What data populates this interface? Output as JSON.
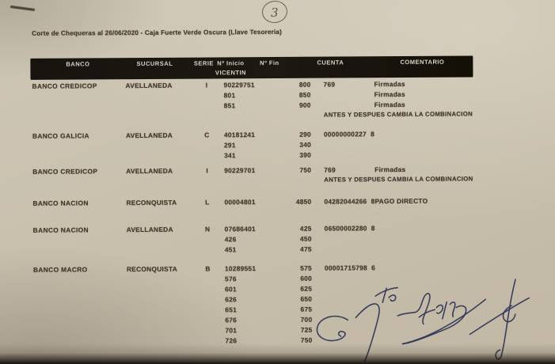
{
  "annotations": {
    "page_number": "3"
  },
  "title": "Corte de Chequeras al 26/06/2020 - Caja Fuerte Verde Oscura (Llave Tesoreria)",
  "table": {
    "headers": [
      "BANCO",
      "SUCURSAL",
      "SERIE",
      "Nº Inicio",
      "Nº Fin",
      "CUENTA",
      "COMENTARIO"
    ],
    "subheader": "VICENTIN",
    "groups": [
      {
        "banco": "BANCO CREDICOP",
        "sucursal": "AVELLANEDA",
        "serie": "I",
        "rows": [
          {
            "inicio": "90229751",
            "fin": "800",
            "cuenta": "769",
            "comentario": "Firmadas"
          },
          {
            "inicio": "801",
            "fin": "850",
            "cuenta": "",
            "comentario": "Firmadas"
          },
          {
            "inicio": "851",
            "fin": "900",
            "cuenta": "",
            "comentario": "Firmadas"
          }
        ],
        "nota": "ANTES Y DESPUES CAMBIA LA COMBINACION"
      },
      {
        "banco": "BANCO GALICIA",
        "sucursal": "AVELLANEDA",
        "serie": "C",
        "rows": [
          {
            "inicio": "40181241",
            "fin": "290",
            "cuenta": "00000000227  8",
            "comentario": ""
          },
          {
            "inicio": "291",
            "fin": "340",
            "cuenta": "",
            "comentario": ""
          },
          {
            "inicio": "341",
            "fin": "390",
            "cuenta": "",
            "comentario": ""
          }
        ],
        "nota": ""
      },
      {
        "banco": "BANCO CREDICOP",
        "sucursal": "AVELLANEDA",
        "serie": "I",
        "rows": [
          {
            "inicio": "90229701",
            "fin": "750",
            "cuenta": "769",
            "comentario": "Firmadas"
          }
        ],
        "nota": "ANTES Y DESPUES CAMBIA LA COMBINACION"
      },
      {
        "banco": "BANCO NACION",
        "sucursal": "RECONQUISTA",
        "serie": "L",
        "rows": [
          {
            "inicio": "00004801",
            "fin": "4850",
            "cuenta": "04282044266  8",
            "comentario": "PAGO DIRECTO"
          }
        ],
        "nota": ""
      },
      {
        "banco": "BANCO NACION",
        "sucursal": "AVELLANEDA",
        "serie": "N",
        "rows": [
          {
            "inicio": "07686401",
            "fin": "425",
            "cuenta": "06500002280  8",
            "comentario": ""
          },
          {
            "inicio": "426",
            "fin": "450",
            "cuenta": "",
            "comentario": ""
          },
          {
            "inicio": "451",
            "fin": "475",
            "cuenta": "",
            "comentario": ""
          }
        ],
        "nota": ""
      },
      {
        "banco": "BANCO MACRO",
        "sucursal": "RECONQUISTA",
        "serie": "B",
        "rows": [
          {
            "inicio": "10289551",
            "fin": "575",
            "cuenta": "00001715798  6",
            "comentario": ""
          },
          {
            "inicio": "576",
            "fin": "600",
            "cuenta": "",
            "comentario": ""
          },
          {
            "inicio": "601",
            "fin": "625",
            "cuenta": "",
            "comentario": ""
          },
          {
            "inicio": "626",
            "fin": "650",
            "cuenta": "",
            "comentario": ""
          },
          {
            "inicio": "651",
            "fin": "675",
            "cuenta": "",
            "comentario": ""
          },
          {
            "inicio": "676",
            "fin": "700",
            "cuenta": "",
            "comentario": ""
          },
          {
            "inicio": "701",
            "fin": "725",
            "cuenta": "",
            "comentario": ""
          },
          {
            "inicio": "726",
            "fin": "750",
            "cuenta": "",
            "comentario": ""
          }
        ],
        "nota": ""
      }
    ]
  },
  "colors": {
    "paper": "#c9c0ae",
    "ink": "#45392d",
    "header_bg": "#17130e",
    "header_text": "#d9d2c4",
    "signature_ink": "#2e3456",
    "pencil": "#6a6054"
  }
}
